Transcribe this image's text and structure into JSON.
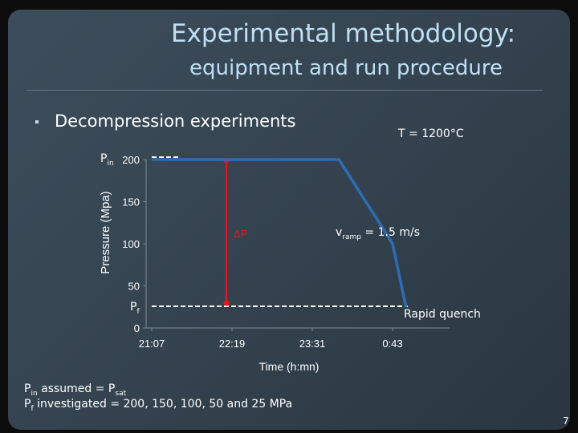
{
  "title": {
    "line1": "Experimental methodology:",
    "line2": "equipment and run procedure"
  },
  "bullet": "Decompression experiments",
  "temperature": {
    "symbol": "T",
    "value": "= 1200°C"
  },
  "labels": {
    "pin_main": "P",
    "pin_sub": "in",
    "pf_main": "P",
    "pf_sub": "f",
    "delta_p": "ΔP",
    "vramp_main": "v",
    "vramp_sub": "ramp",
    "vramp_value": "= 1.5 m/s",
    "rapid_quench": "Rapid quench"
  },
  "notes": {
    "line1_p": "P",
    "line1_sub": "in",
    "line1_mid": " assumed = P",
    "line1_sub2": "sat",
    "line2_p": "P",
    "line2_sub": "f",
    "line2_rest": " investigated = 200, 150, 100, 50 and 25 MPa"
  },
  "page_number": "7",
  "colors": {
    "series": "#2f6cb4",
    "delta_arrow": "#e8141e",
    "title": "#bfe0f4",
    "background": "#34434f"
  },
  "chart_data": {
    "type": "line",
    "xlabel": "Time (h:mn)",
    "ylabel": "Pressure (Mpa)",
    "x_ticks": [
      "21:07",
      "22:19",
      "23:31",
      "0:43"
    ],
    "y_ticks": [
      0,
      50,
      100,
      150,
      200
    ],
    "ylim": [
      0,
      200
    ],
    "grid": false,
    "series": [
      {
        "x": [
          "21:07",
          "21:31",
          "22:19",
          "23:55",
          "0:43",
          "0:55"
        ],
        "y": [
          200,
          200,
          200,
          200,
          100,
          25
        ]
      }
    ]
  }
}
